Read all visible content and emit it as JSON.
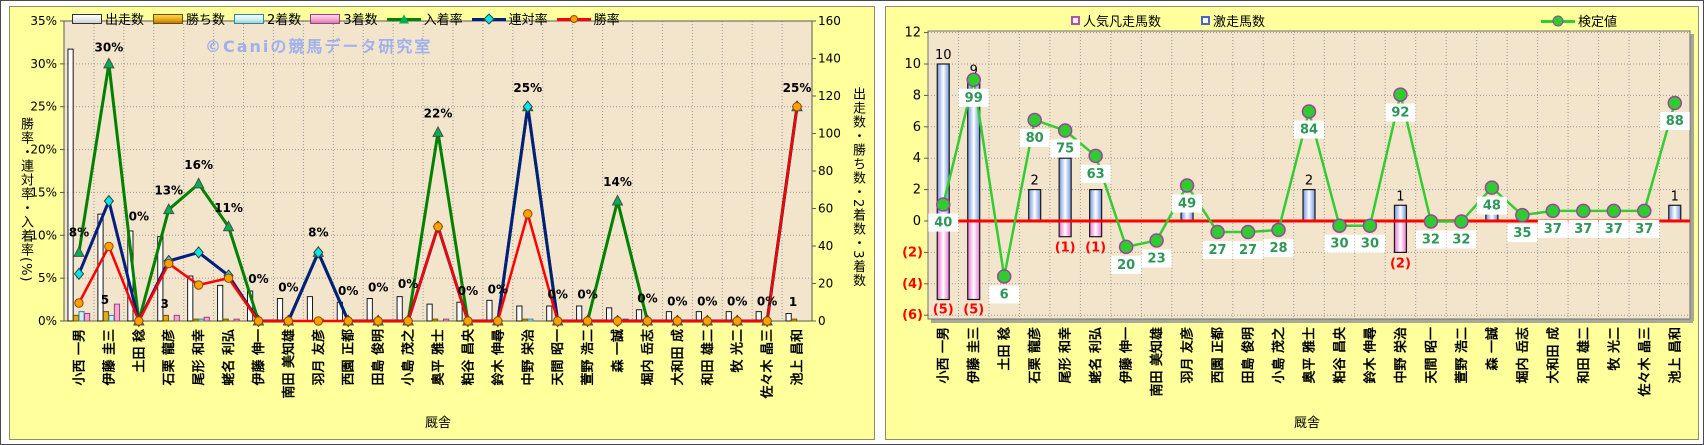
{
  "colors": {
    "panel_bg": "#ffff9c",
    "plot_bg": "#f2e5cb",
    "grid": "#a09880",
    "nyuchaku_line": "#008200",
    "rentai_line": "#001f7e",
    "shoritsu_line": "#ff0000",
    "kentei_line": "#33cc33",
    "kentei_label": "#2e9658",
    "negative_label": "#ff0000",
    "zero_line_right_chart": "#ff0000"
  },
  "left_legend": {
    "shussou": "出走数",
    "kachi": "勝ち数",
    "nichaku": "2着数",
    "sanchaku": "3着数",
    "nyuchaku": "入着率",
    "rentai": "連対率",
    "shoritsu": "勝率"
  },
  "right_legend": {
    "ninki_bonso": "人気凡走馬数",
    "gekiso": "激走馬数",
    "kentei": "検定値"
  },
  "chart_data": [
    {
      "type": "bar+line combo",
      "watermark": "©Caniの競馬データ研究室",
      "x_title": "厩舎",
      "y_left": {
        "title": "勝率・連対率・入着率(%)",
        "min": 0,
        "max": 35,
        "step": 5,
        "format": "percent"
      },
      "y_right": {
        "title": "出走数・勝ち数・2着数・3着数",
        "min": 0,
        "max": 160,
        "step": 20
      },
      "categories": [
        "小西 一男",
        "伊藤 圭三",
        "土田 稔",
        "石栗 龍彦",
        "尾形 和幸",
        "蛯名 利弘",
        "伊藤 伸一",
        "南田 美知雄",
        "羽月 友彦",
        "西園 正都",
        "田島 俊明",
        "小島 茂之",
        "奥平 雅士",
        "粕谷 昌央",
        "鈴木 伸尋",
        "中野 栄治",
        "天間 昭一",
        "萱野 浩二",
        "森 一誠",
        "堀内 岳志",
        "大和田 成",
        "和田 雄二",
        "牧 光二",
        "佐々木 晶三",
        "池上 昌和"
      ],
      "series": [
        {
          "name": "出走数",
          "type": "bar",
          "axis": "right",
          "values": [
            145,
            57,
            48,
            45,
            24,
            19,
            16,
            12,
            13,
            10,
            12,
            13,
            9,
            10,
            11,
            8,
            8,
            8,
            7,
            6,
            5,
            5,
            5,
            5,
            4
          ]
        },
        {
          "name": "勝ち数",
          "type": "bar",
          "axis": "right",
          "values": [
            3,
            5,
            0,
            3,
            1,
            1,
            0,
            0,
            0,
            0,
            0,
            0,
            1,
            0,
            0,
            1,
            0,
            0,
            0,
            0,
            0,
            0,
            0,
            0,
            1
          ]
        },
        {
          "name": "2着数",
          "type": "bar",
          "axis": "right",
          "values": [
            5,
            3,
            0,
            0,
            1,
            0,
            0,
            0,
            1,
            0,
            0,
            0,
            0,
            0,
            0,
            1,
            0,
            0,
            0,
            0,
            0,
            0,
            0,
            0,
            0
          ]
        },
        {
          "name": "3着数",
          "type": "bar",
          "axis": "right",
          "values": [
            4,
            9,
            0,
            3,
            2,
            1,
            0,
            0,
            0,
            0,
            0,
            0,
            1,
            0,
            0,
            0,
            0,
            0,
            1,
            0,
            0,
            0,
            0,
            0,
            0
          ]
        },
        {
          "name": "入着率",
          "type": "line",
          "axis": "left",
          "marker": "triangle",
          "values": [
            8,
            30,
            0,
            13,
            16,
            11,
            0,
            0,
            8,
            0,
            0,
            0,
            22,
            0,
            0,
            25,
            0,
            0,
            14,
            0,
            0,
            0,
            0,
            0,
            25
          ]
        },
        {
          "name": "連対率",
          "type": "line",
          "axis": "left",
          "marker": "diamond",
          "values": [
            5.5,
            14,
            0,
            7,
            8,
            5.3,
            0,
            0,
            8,
            0,
            0,
            0,
            11,
            0,
            0,
            25,
            0,
            0,
            0,
            0,
            0,
            0,
            0,
            0,
            25
          ]
        },
        {
          "name": "勝率",
          "type": "line",
          "axis": "left",
          "marker": "circle",
          "values": [
            2.1,
            8.7,
            0,
            6.7,
            4.2,
            5,
            0,
            0,
            0,
            0,
            0,
            0,
            11,
            0,
            0,
            12.5,
            0,
            0,
            0,
            0,
            0,
            0,
            0,
            0,
            25
          ]
        }
      ],
      "point_labels": [
        {
          "text": "8%",
          "y": 9.6
        },
        {
          "text": "30%",
          "y": 31.2
        },
        {
          "text": "0%",
          "y": 11.5
        },
        {
          "text": "13%",
          "y": 14.5
        },
        {
          "text": "16%",
          "y": 17.5
        },
        {
          "text": "11%",
          "y": 12.5
        },
        {
          "text": "0%",
          "y": 4.2
        },
        {
          "text": "0%",
          "y": 3.2
        },
        {
          "text": "8%",
          "y": 9.6
        },
        {
          "text": "0%",
          "y": 2.8
        },
        {
          "text": "0%",
          "y": 3.2
        },
        {
          "text": "0%",
          "y": 3.6
        },
        {
          "text": "22%",
          "y": 23.5
        },
        {
          "text": "0%",
          "y": 2.8
        },
        {
          "text": "0%",
          "y": 3.0
        },
        {
          "text": "25%",
          "y": 26.5
        },
        {
          "text": "0%",
          "y": 2.4
        },
        {
          "text": "0%",
          "y": 2.4
        },
        {
          "text": "14%",
          "y": 15.5
        },
        {
          "text": "0%",
          "y": 1.9
        },
        {
          "text": "0%",
          "y": 1.6
        },
        {
          "text": "0%",
          "y": 1.6
        },
        {
          "text": "0%",
          "y": 1.6
        },
        {
          "text": "0%",
          "y": 1.6
        },
        {
          "text": "25%",
          "y": 26.5
        }
      ],
      "bar_value_labels": [
        {
          "index": 1,
          "text": "5",
          "at": 8
        },
        {
          "index": 3,
          "text": "3",
          "at": 6
        },
        {
          "index": 24,
          "text": "1",
          "at": 7
        }
      ]
    },
    {
      "type": "bar+line combo",
      "x_title": "厩舎",
      "y": {
        "min": -6,
        "max": 12,
        "step": 2,
        "negative_style": "red parentheses",
        "negative_ticks": [
          "(2)",
          "(4)",
          "(6)"
        ]
      },
      "categories": [
        "小西 一男",
        "伊藤 圭三",
        "土田 稔",
        "石栗 龍彦",
        "尾形 和幸",
        "蛯名 利弘",
        "伊藤 伸一",
        "南田 美知雄",
        "羽月 友彦",
        "西園 正都",
        "田島 俊明",
        "小島 茂之",
        "奥平 雅士",
        "粕谷 昌央",
        "鈴木 伸尋",
        "中野 栄治",
        "天間 昭一",
        "萱野 浩二",
        "森 一誠",
        "堀内 岳志",
        "大和田 成",
        "和田 雄二",
        "牧 光二",
        "佐々木 晶三",
        "池上 昌和"
      ],
      "series": [
        {
          "name": "人気凡走馬数",
          "type": "bar",
          "direction": "down",
          "values": [
            5,
            5,
            0,
            0,
            1,
            1,
            0,
            0,
            0,
            0,
            0,
            0,
            0,
            0,
            0,
            2,
            0,
            0,
            0,
            0,
            0,
            0,
            0,
            0,
            0
          ],
          "labels": [
            "(5)",
            "(5)",
            "",
            "",
            "(1)",
            "(1)",
            "",
            "",
            "",
            "",
            "",
            "",
            "",
            "",
            "",
            "(2)",
            "",
            "",
            "",
            "",
            "",
            "",
            "",
            "",
            ""
          ]
        },
        {
          "name": "激走馬数",
          "type": "bar",
          "direction": "up",
          "values": [
            10,
            9,
            0,
            2,
            4,
            2,
            0,
            0,
            1,
            0,
            0,
            0,
            2,
            0,
            0,
            1,
            0,
            0,
            1,
            0,
            0,
            0,
            0,
            0,
            1
          ],
          "labels": [
            "10",
            "9",
            "",
            "2",
            "",
            "",
            "",
            "",
            "",
            "",
            "",
            "",
            "2",
            "",
            "",
            "1",
            "",
            "",
            "",
            "",
            "",
            "",
            "",
            "",
            "1"
          ]
        },
        {
          "name": "検定値",
          "type": "line",
          "marker": "circle",
          "values": [
            40,
            99,
            6,
            80,
            75,
            63,
            20,
            23,
            49,
            27,
            27,
            28,
            84,
            30,
            30,
            92,
            32,
            32,
            48,
            35,
            37,
            37,
            37,
            37,
            88
          ],
          "axis_map": {
            "scale": 0.1347,
            "offset": -4.34
          }
        }
      ]
    }
  ]
}
